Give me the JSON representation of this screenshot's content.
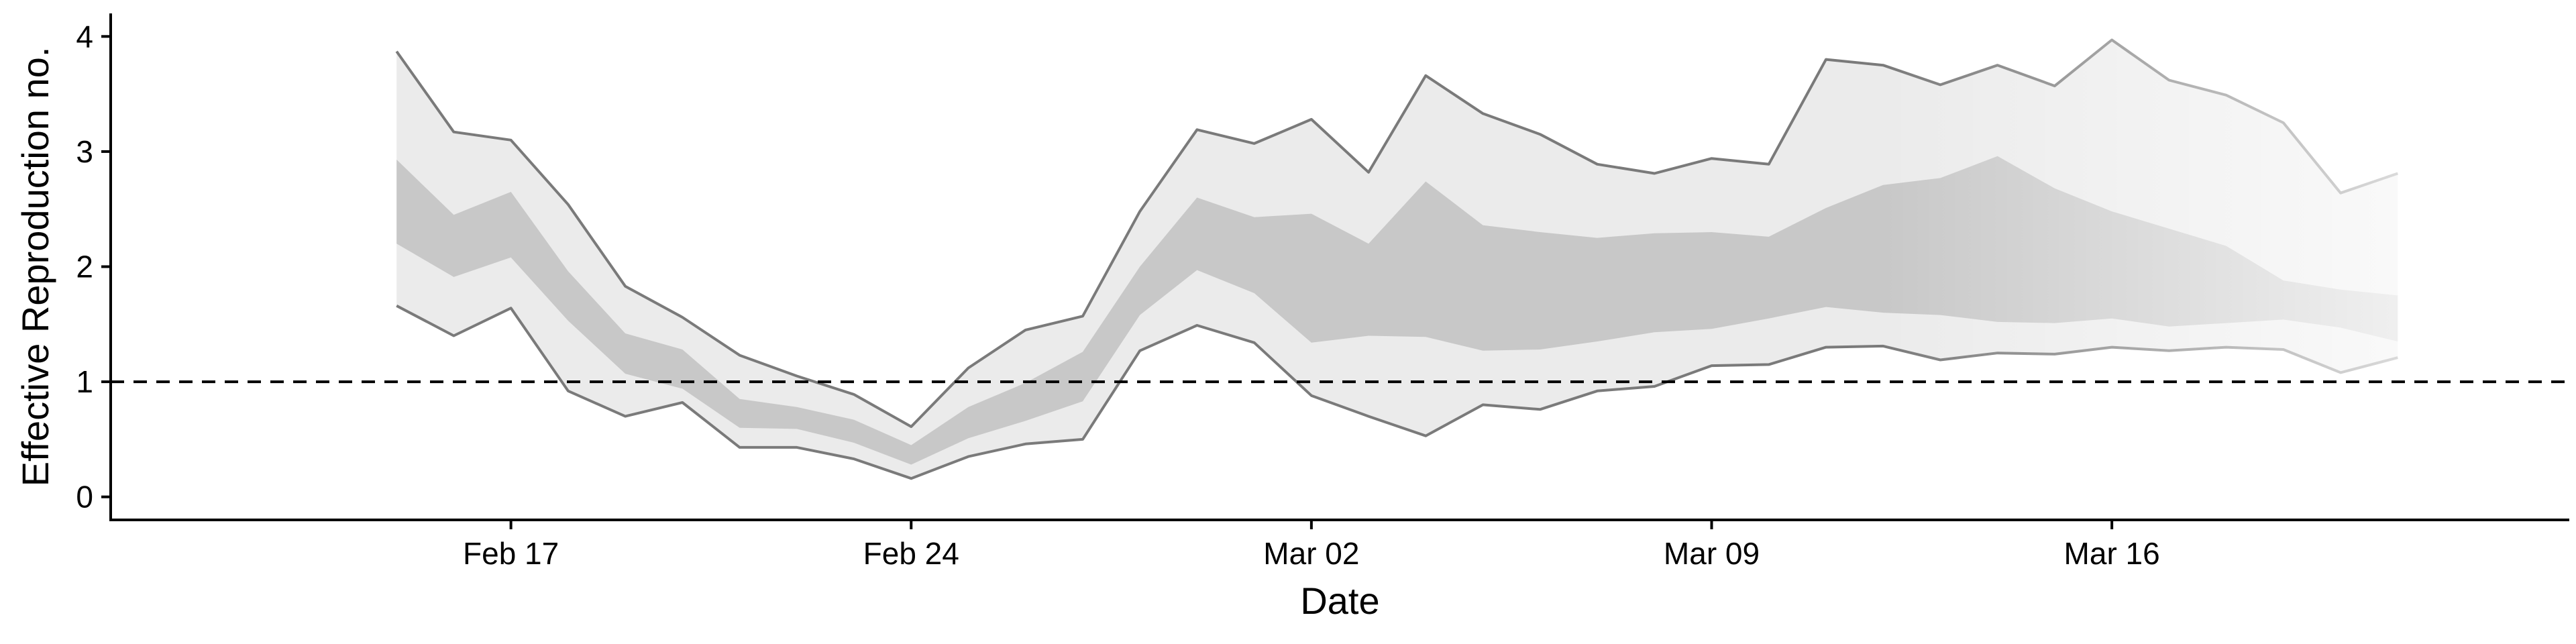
{
  "chart_data": {
    "type": "area",
    "xlabel": "Date",
    "ylabel": "Effective Reproduction no.",
    "x_tick_labels": [
      "Feb 17",
      "Feb 24",
      "Mar 02",
      "Mar 09",
      "Mar 16"
    ],
    "x_tick_dates": [
      "2020-02-17",
      "2020-02-24",
      "2020-03-02",
      "2020-03-09",
      "2020-03-16"
    ],
    "y_ticks": [
      0,
      1,
      2,
      3,
      4
    ],
    "xlim": [
      "2020-02-10",
      "2020-03-24"
    ],
    "ylim": [
      -0.2,
      4.2
    ],
    "reference_line": {
      "y": 1,
      "style": "dashed"
    },
    "grid": false,
    "legend": "none",
    "colors": {
      "outer_band": "#ebebeb",
      "inner_band": "#c8c8c8",
      "band_edge": "#7a7a7a",
      "reference_line": "#000000"
    },
    "dates": [
      "2020-02-15",
      "2020-02-16",
      "2020-02-17",
      "2020-02-18",
      "2020-02-19",
      "2020-02-20",
      "2020-02-21",
      "2020-02-22",
      "2020-02-23",
      "2020-02-24",
      "2020-02-25",
      "2020-02-26",
      "2020-02-27",
      "2020-02-28",
      "2020-02-29",
      "2020-03-01",
      "2020-03-02",
      "2020-03-03",
      "2020-03-04",
      "2020-03-05",
      "2020-03-06",
      "2020-03-07",
      "2020-03-08",
      "2020-03-09",
      "2020-03-10",
      "2020-03-11",
      "2020-03-12",
      "2020-03-13",
      "2020-03-14",
      "2020-03-15",
      "2020-03-16",
      "2020-03-17",
      "2020-03-18",
      "2020-03-19",
      "2020-03-20",
      "2020-03-21"
    ],
    "series": [
      {
        "values_outer_upper": [
          3.87,
          3.17,
          3.1,
          2.54,
          1.83,
          1.56,
          1.23,
          1.05,
          0.89,
          0.61,
          1.12,
          1.45,
          1.57,
          2.48,
          3.19,
          3.07,
          3.28,
          2.82,
          3.66,
          3.33,
          3.15,
          2.89,
          2.81,
          2.94,
          2.89,
          3.8,
          3.75,
          3.58,
          3.75,
          3.57,
          3.97,
          3.62,
          3.49,
          3.25,
          2.64,
          2.81
        ],
        "values_inner_upper": [
          2.93,
          2.45,
          2.65,
          1.96,
          1.42,
          1.28,
          0.85,
          0.78,
          0.67,
          0.45,
          0.78,
          0.99,
          1.26,
          2.0,
          2.6,
          2.43,
          2.46,
          2.2,
          2.74,
          2.36,
          2.3,
          2.25,
          2.29,
          2.3,
          2.26,
          2.51,
          2.71,
          2.77,
          2.96,
          2.68,
          2.48,
          2.33,
          2.18,
          1.88,
          1.8,
          1.75
        ],
        "values_inner_lower": [
          2.2,
          1.91,
          2.08,
          1.53,
          1.07,
          0.94,
          0.6,
          0.59,
          0.47,
          0.28,
          0.51,
          0.66,
          0.83,
          1.58,
          1.97,
          1.77,
          1.34,
          1.4,
          1.39,
          1.27,
          1.28,
          1.35,
          1.43,
          1.46,
          1.55,
          1.65,
          1.6,
          1.58,
          1.52,
          1.51,
          1.55,
          1.48,
          1.51,
          1.54,
          1.47,
          1.35
        ],
        "values_outer_lower": [
          1.66,
          1.4,
          1.64,
          0.92,
          0.7,
          0.82,
          0.43,
          0.43,
          0.33,
          0.16,
          0.35,
          0.46,
          0.5,
          1.27,
          1.49,
          1.34,
          0.88,
          0.7,
          0.53,
          0.8,
          0.76,
          0.92,
          0.96,
          1.14,
          1.15,
          1.3,
          1.31,
          1.19,
          1.25,
          1.24,
          1.3,
          1.27,
          1.3,
          1.28,
          1.08,
          1.21
        ]
      }
    ]
  }
}
